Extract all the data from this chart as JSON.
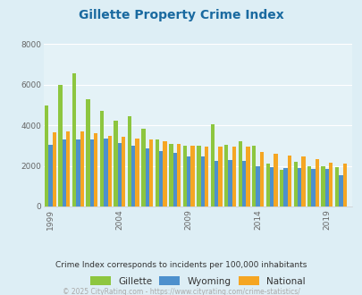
{
  "title": "Gillette Property Crime Index",
  "title_color": "#1a6aa0",
  "subtitle": "Crime Index corresponds to incidents per 100,000 inhabitants",
  "footer": "© 2025 CityRating.com - https://www.cityrating.com/crime-statistics/",
  "years": [
    1999,
    2000,
    2001,
    2002,
    2003,
    2004,
    2005,
    2006,
    2007,
    2008,
    2009,
    2010,
    2011,
    2012,
    2013,
    2014,
    2015,
    2016,
    2017,
    2018,
    2019,
    2020
  ],
  "gillette": [
    5000,
    6000,
    6550,
    5300,
    4700,
    4250,
    4450,
    3850,
    3300,
    3100,
    3000,
    3000,
    4050,
    3050,
    3200,
    3000,
    2100,
    1800,
    2200,
    2000,
    2000,
    1950
  ],
  "wyoming": [
    3050,
    3300,
    3300,
    3300,
    3350,
    3150,
    3000,
    2850,
    2750,
    2650,
    2450,
    2450,
    2250,
    2300,
    2250,
    2000,
    1950,
    1900,
    1900,
    1850,
    1850,
    1550
  ],
  "national": [
    3650,
    3700,
    3700,
    3600,
    3500,
    3450,
    3350,
    3300,
    3200,
    3100,
    3000,
    2950,
    2950,
    2950,
    2950,
    2700,
    2600,
    2500,
    2450,
    2350,
    2150,
    2100
  ],
  "gillette_color": "#8dc63f",
  "wyoming_color": "#4d90cd",
  "national_color": "#f5a623",
  "bg_color": "#ddeef5",
  "plot_bg": "#e4f2f7",
  "ylim": [
    0,
    8000
  ],
  "yticks": [
    0,
    2000,
    4000,
    6000,
    8000
  ],
  "bar_width": 0.28,
  "legend_labels": [
    "Gillette",
    "Wyoming",
    "National"
  ],
  "subtitle_color": "#333333",
  "footer_color": "#aaaaaa",
  "xtick_positions": [
    1999,
    2004,
    2009,
    2014,
    2019
  ]
}
